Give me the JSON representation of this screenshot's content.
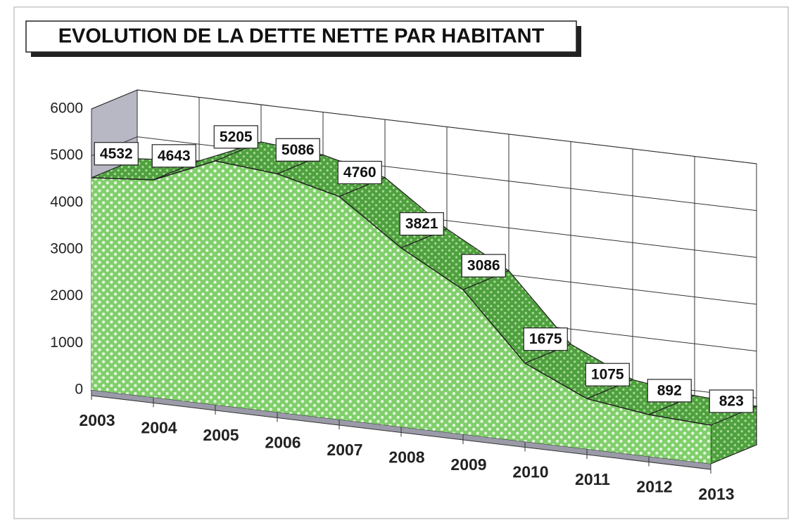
{
  "chart_data": {
    "type": "area3d",
    "title": "EVOLUTION DE LA DETTE NETTE PAR HABITANT",
    "categories": [
      "2003",
      "2004",
      "2005",
      "2006",
      "2007",
      "2008",
      "2009",
      "2010",
      "2011",
      "2012",
      "2013"
    ],
    "values": [
      4532,
      4643,
      5205,
      5086,
      4760,
      3821,
      3086,
      1675,
      1075,
      892,
      823
    ],
    "color": "#5cb84a",
    "ylim": [
      0,
      6000
    ],
    "yticks": [
      0,
      1000,
      2000,
      3000,
      4000,
      5000,
      6000
    ],
    "grid": true
  }
}
